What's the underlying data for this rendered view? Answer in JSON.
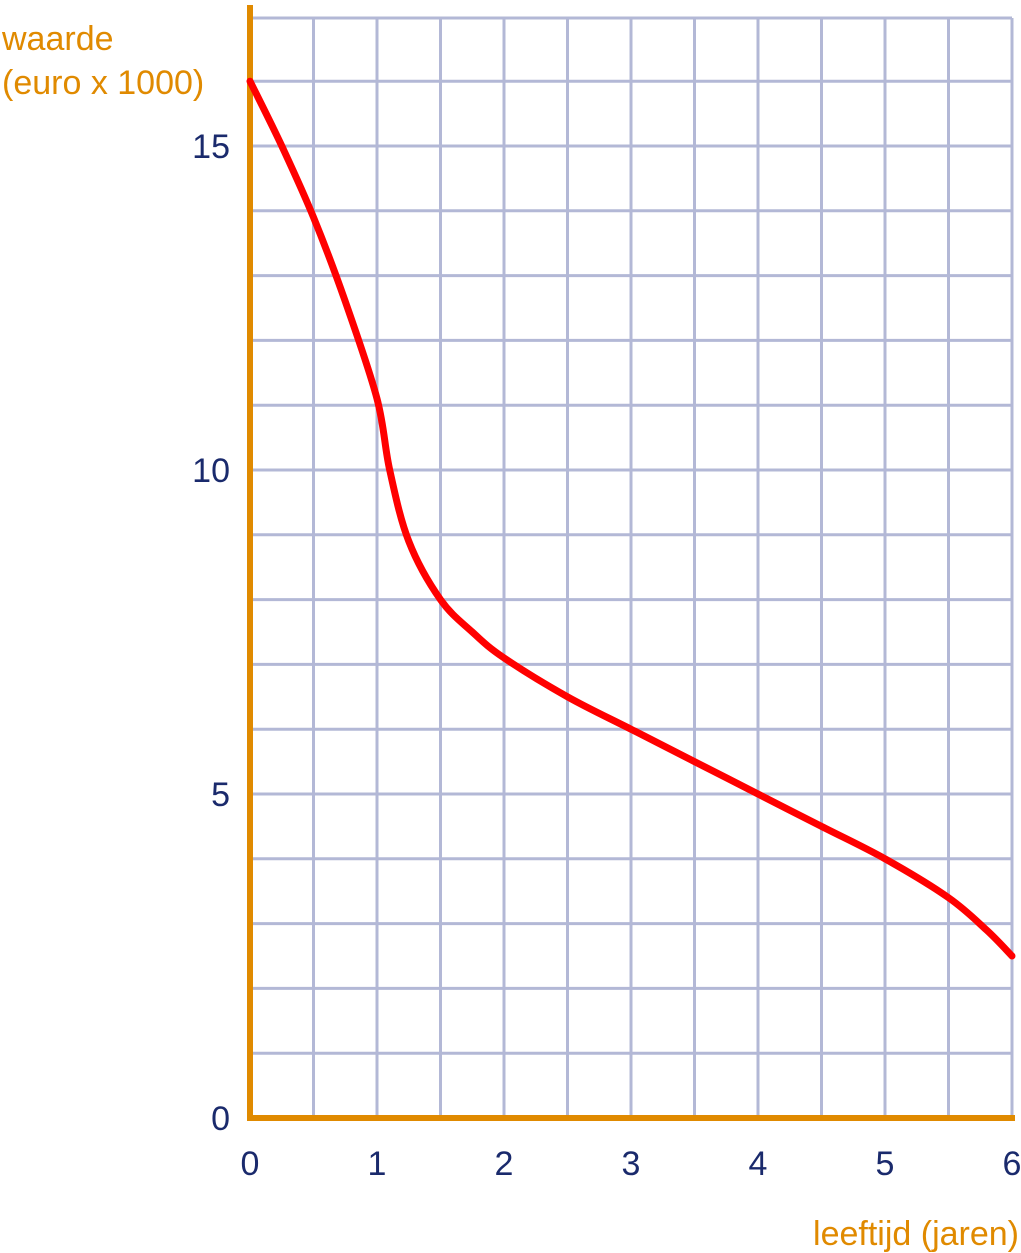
{
  "chart_data": {
    "type": "line",
    "title": "",
    "ylabel_line1": "waarde",
    "ylabel_line2": "(euro x 1000)",
    "xlabel": "leeftijd (jaren)",
    "xlim": [
      0,
      6
    ],
    "ylim": [
      0,
      17
    ],
    "x_ticks": [
      "0",
      "1",
      "2",
      "3",
      "4",
      "5",
      "6"
    ],
    "y_ticks": [
      "0",
      "5",
      "10",
      "15"
    ],
    "grid": true,
    "colors": {
      "curve": "#ff0000",
      "axis": "#e08a00",
      "grid": "#b3b8d6",
      "tick_text": "#1a2a6c"
    },
    "series": [
      {
        "x": [
          0,
          0.25,
          0.5,
          0.75,
          1.0,
          1.1,
          1.25,
          1.5,
          1.75,
          2.0,
          2.5,
          3.0,
          3.5,
          4.0,
          4.5,
          5.0,
          5.5,
          5.8,
          6.0
        ],
        "y": [
          16.0,
          15.0,
          13.9,
          12.6,
          11.1,
          10.0,
          8.9,
          8.0,
          7.5,
          7.1,
          6.5,
          6.0,
          5.5,
          5.0,
          4.5,
          4.0,
          3.4,
          2.9,
          2.5
        ]
      }
    ]
  }
}
